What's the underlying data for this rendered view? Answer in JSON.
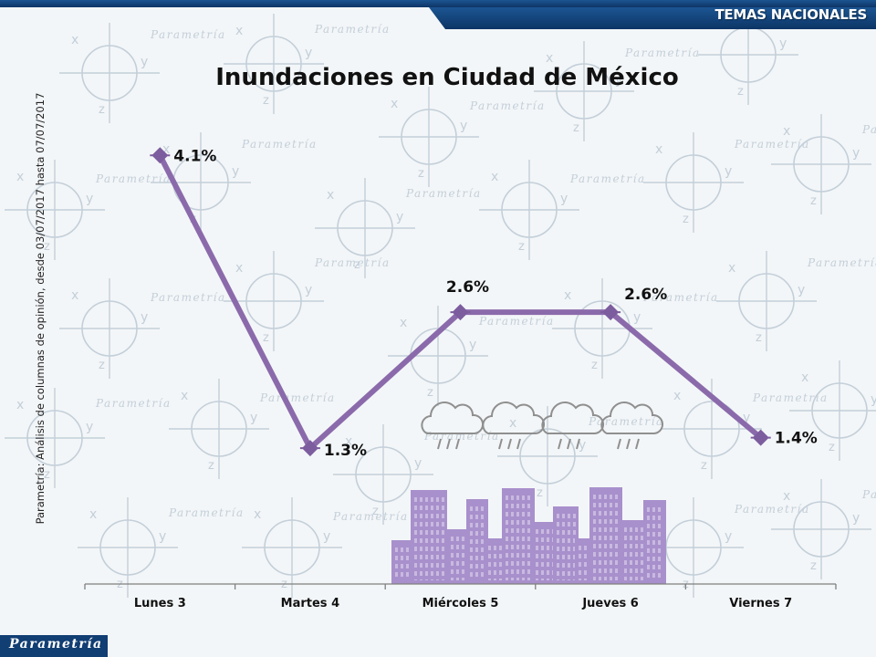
{
  "header": {
    "section_label": "TEMAS NACIONALES"
  },
  "source_note": "Parametría: Análisis de columnas de opinión, desde 03/07/2017 hasta 07/07/2017",
  "footer": {
    "brand_label": "Parametría"
  },
  "watermark": {
    "word": "Parametría",
    "symbols": [
      "x",
      "y",
      "z"
    ]
  },
  "colors": {
    "line": "#8b6aab",
    "marker": "#7c5d9e",
    "header_bar": "#113e73",
    "city": "#a890cc",
    "clouds": "#8f8f8f",
    "watermark": "#c3cfd9"
  },
  "illustration": {
    "clouds": "cloud-rain-icon",
    "city": "city-skyline-icon"
  },
  "chart_data": {
    "type": "line",
    "title": "Inundaciones en Ciudad de México",
    "xlabel": "",
    "ylabel": "",
    "categories": [
      "Lunes 3",
      "Martes 4",
      "Miércoles 5",
      "Jueves 6",
      "Viernes 7"
    ],
    "series": [
      {
        "values": [
          4.1,
          1.3,
          2.6,
          2.6,
          1.4
        ]
      }
    ],
    "data_labels": [
      "4.1%",
      "1.3%",
      "2.6%",
      "2.6%",
      "1.4%"
    ],
    "ylim": [
      0,
      5
    ],
    "grid": false,
    "legend": "none"
  }
}
